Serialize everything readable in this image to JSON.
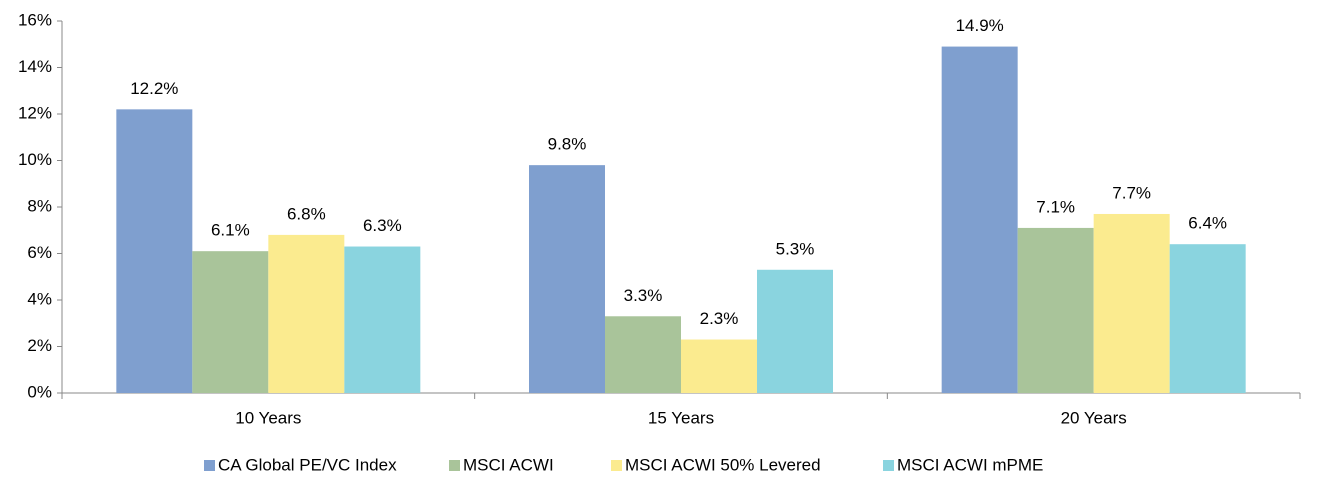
{
  "chart_data": {
    "type": "bar",
    "categories": [
      "10 Years",
      "15 Years",
      "20 Years"
    ],
    "series": [
      {
        "name": "CA Global PE/VC Index",
        "color": "#7f9fcf",
        "values": [
          12.2,
          9.8,
          14.9
        ],
        "value_labels": [
          "12.2%",
          "9.8%",
          "14.9%"
        ]
      },
      {
        "name": "MSCI ACWI",
        "color": "#a9c49a",
        "values": [
          6.1,
          3.3,
          7.1
        ],
        "value_labels": [
          "6.1%",
          "3.3%",
          "7.1%"
        ]
      },
      {
        "name": "MSCI ACWI 50% Levered",
        "color": "#fbeb8f",
        "values": [
          6.8,
          2.3,
          7.7
        ],
        "value_labels": [
          "6.8%",
          "2.3%",
          "7.7%"
        ]
      },
      {
        "name": "MSCI ACWI mPME",
        "color": "#8ad4df",
        "values": [
          6.3,
          5.3,
          6.4
        ],
        "value_labels": [
          "6.3%",
          "5.3%",
          "6.4%"
        ]
      }
    ],
    "ylim": [
      0,
      16
    ],
    "yticks": [
      {
        "value": 0,
        "label": "0%"
      },
      {
        "value": 2,
        "label": "2%"
      },
      {
        "value": 4,
        "label": "4%"
      },
      {
        "value": 6,
        "label": "6%"
      },
      {
        "value": 8,
        "label": "8%"
      },
      {
        "value": 10,
        "label": "10%"
      },
      {
        "value": 12,
        "label": "12%"
      },
      {
        "value": 14,
        "label": "14%"
      },
      {
        "value": 16,
        "label": "16%"
      }
    ],
    "legend": "bottom"
  }
}
